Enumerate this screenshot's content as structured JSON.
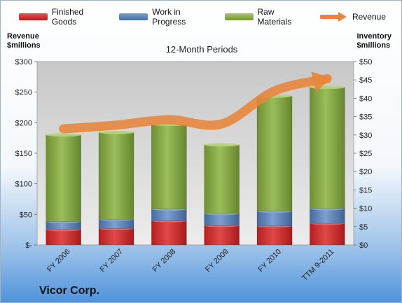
{
  "legend": {
    "finished_goods": "Finished Goods",
    "wip": "Work in Progress",
    "raw_materials": "Raw Materials",
    "revenue": "Revenue"
  },
  "axes": {
    "left_title_line1": "Revenue",
    "left_title_line2": "$millions",
    "right_title_line1": "Inventory",
    "right_title_line2": "$millions"
  },
  "subtitle": "12-Month Periods",
  "company": "Vicor Corp.",
  "colors": {
    "finished_goods": "#cc2a2a",
    "wip": "#5a7fb4",
    "raw_materials": "#8cad4a",
    "revenue": "#e8853a"
  },
  "chart_data": {
    "type": "bar",
    "stacked": true,
    "categories": [
      "FY 2006",
      "FY 2007",
      "FY 2008",
      "FY 2009",
      "FY 2010",
      "TTM 9-2011"
    ],
    "series": [
      {
        "name": "Finished Goods",
        "axis": "right",
        "values": [
          4.2,
          4.5,
          6.6,
          5.3,
          5.2,
          5.9
        ]
      },
      {
        "name": "Work in Progress",
        "axis": "right",
        "values": [
          2.2,
          2.5,
          3.2,
          3.3,
          4.0,
          4.0
        ]
      },
      {
        "name": "Raw Materials",
        "axis": "right",
        "values": [
          23.6,
          23.7,
          23.1,
          18.7,
          31.4,
          33.1
        ]
      },
      {
        "name": "Revenue",
        "axis": "left",
        "type": "line",
        "values": [
          190,
          196,
          205,
          198,
          252,
          272
        ]
      }
    ],
    "left_axis": {
      "ylim": [
        0,
        300
      ],
      "ticks": [
        "$-",
        "$50",
        "$100",
        "$150",
        "$200",
        "$250",
        "$300"
      ]
    },
    "right_axis": {
      "ylim": [
        0,
        50
      ],
      "ticks": [
        "$0",
        "$5",
        "$10",
        "$15",
        "$20",
        "$25",
        "$30",
        "$35",
        "$40",
        "$45",
        "$50"
      ]
    },
    "grid": false,
    "legend_position": "top"
  }
}
